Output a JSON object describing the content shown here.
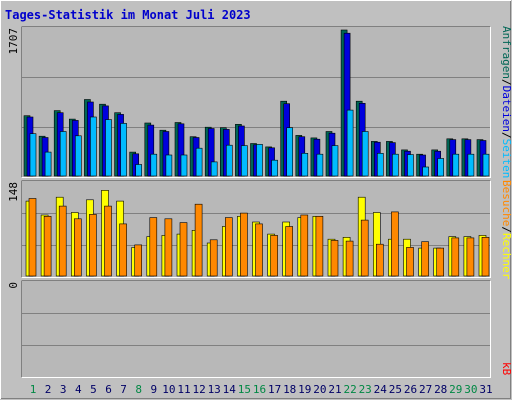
{
  "title": "Tages-Statistik im Monat Juli 2023",
  "colors": {
    "background": "#c0c0c0",
    "plot_bg": "#b8b8b8",
    "border": "#ffffff",
    "hits": "#006655",
    "files": "#0000dd",
    "pages": "#00bbff",
    "visits": "#ff8800",
    "sites": "#ffff00",
    "kbytes": "#ff0000",
    "title": "#0000cc",
    "weekend_day": "#008844",
    "weekday": "#000066"
  },
  "side_labels": {
    "hits": "Anfragen",
    "files": "Dateien",
    "pages": "Seiten",
    "visits": "Besuche",
    "sites": "Rechner",
    "kbytes": "kB",
    "sep1": "/",
    "sep2": "/",
    "sep3": "/",
    "sep4": "/"
  },
  "chart_data": [
    {
      "type": "bar",
      "panel": "top",
      "ymax_label": "1707",
      "ylim": [
        0,
        1707
      ],
      "categories": [
        "1",
        "2",
        "3",
        "4",
        "5",
        "6",
        "7",
        "8",
        "9",
        "10",
        "11",
        "12",
        "13",
        "14",
        "15",
        "16",
        "17",
        "18",
        "19",
        "20",
        "21",
        "22",
        "23",
        "24",
        "25",
        "26",
        "27",
        "28",
        "29",
        "30",
        "31"
      ],
      "weekend_days": [
        "1",
        "8",
        "15",
        "16",
        "22",
        "23",
        "29",
        "30"
      ],
      "series": [
        {
          "name": "Anfragen",
          "color": "#006655",
          "values": [
            705,
            465,
            765,
            665,
            895,
            840,
            740,
            280,
            620,
            535,
            625,
            460,
            570,
            565,
            605,
            380,
            340,
            875,
            475,
            445,
            520,
            1707,
            875,
            405,
            405,
            305,
            255,
            305,
            435,
            435,
            425
          ]
        },
        {
          "name": "Dateien",
          "color": "#0000dd",
          "values": [
            690,
            450,
            740,
            650,
            865,
            820,
            720,
            260,
            595,
            520,
            610,
            450,
            555,
            545,
            585,
            365,
            330,
            845,
            460,
            430,
            500,
            1670,
            850,
            395,
            390,
            290,
            245,
            290,
            425,
            425,
            415
          ]
        },
        {
          "name": "Seiten",
          "color": "#00bbff",
          "values": [
            495,
            280,
            520,
            470,
            690,
            660,
            615,
            135,
            255,
            245,
            245,
            325,
            165,
            360,
            355,
            370,
            185,
            565,
            265,
            255,
            355,
            770,
            520,
            265,
            255,
            250,
            105,
            205,
            255,
            255,
            255
          ]
        }
      ]
    },
    {
      "type": "bar",
      "panel": "middle",
      "ymax_label": "148",
      "ylim": [
        0,
        148
      ],
      "categories": [
        "1",
        "2",
        "3",
        "4",
        "5",
        "6",
        "7",
        "8",
        "9",
        "10",
        "11",
        "12",
        "13",
        "14",
        "15",
        "16",
        "17",
        "18",
        "19",
        "20",
        "21",
        "22",
        "23",
        "24",
        "25",
        "26",
        "27",
        "28",
        "29",
        "30",
        "31"
      ],
      "series": [
        {
          "name": "Rechner",
          "color": "#ffff00",
          "values": [
            118,
            96,
            124,
            100,
            120,
            135,
            118,
            45,
            62,
            64,
            66,
            72,
            52,
            78,
            94,
            85,
            66,
            85,
            92,
            94,
            58,
            61,
            124,
            100,
            58,
            58,
            44,
            44,
            62,
            62,
            64
          ]
        },
        {
          "name": "Besuche",
          "color": "#ff8800",
          "values": [
            122,
            94,
            110,
            90,
            97,
            110,
            82,
            49,
            92,
            90,
            84,
            113,
            57,
            92,
            99,
            82,
            64,
            78,
            96,
            94,
            56,
            55,
            88,
            50,
            101,
            45,
            54,
            44,
            60,
            60,
            61
          ]
        }
      ]
    },
    {
      "type": "bar",
      "panel": "bottom",
      "ymax_label": "0",
      "ylim": [
        0,
        1
      ],
      "series": [
        {
          "name": "kB",
          "color": "#ff0000",
          "values": [
            0,
            0,
            0,
            0,
            0,
            0,
            0,
            0,
            0,
            0,
            0,
            0,
            0,
            0,
            0,
            0,
            0,
            0,
            0,
            0,
            0,
            0,
            0,
            0,
            0,
            0,
            0,
            0,
            0,
            0,
            0
          ]
        }
      ]
    }
  ]
}
